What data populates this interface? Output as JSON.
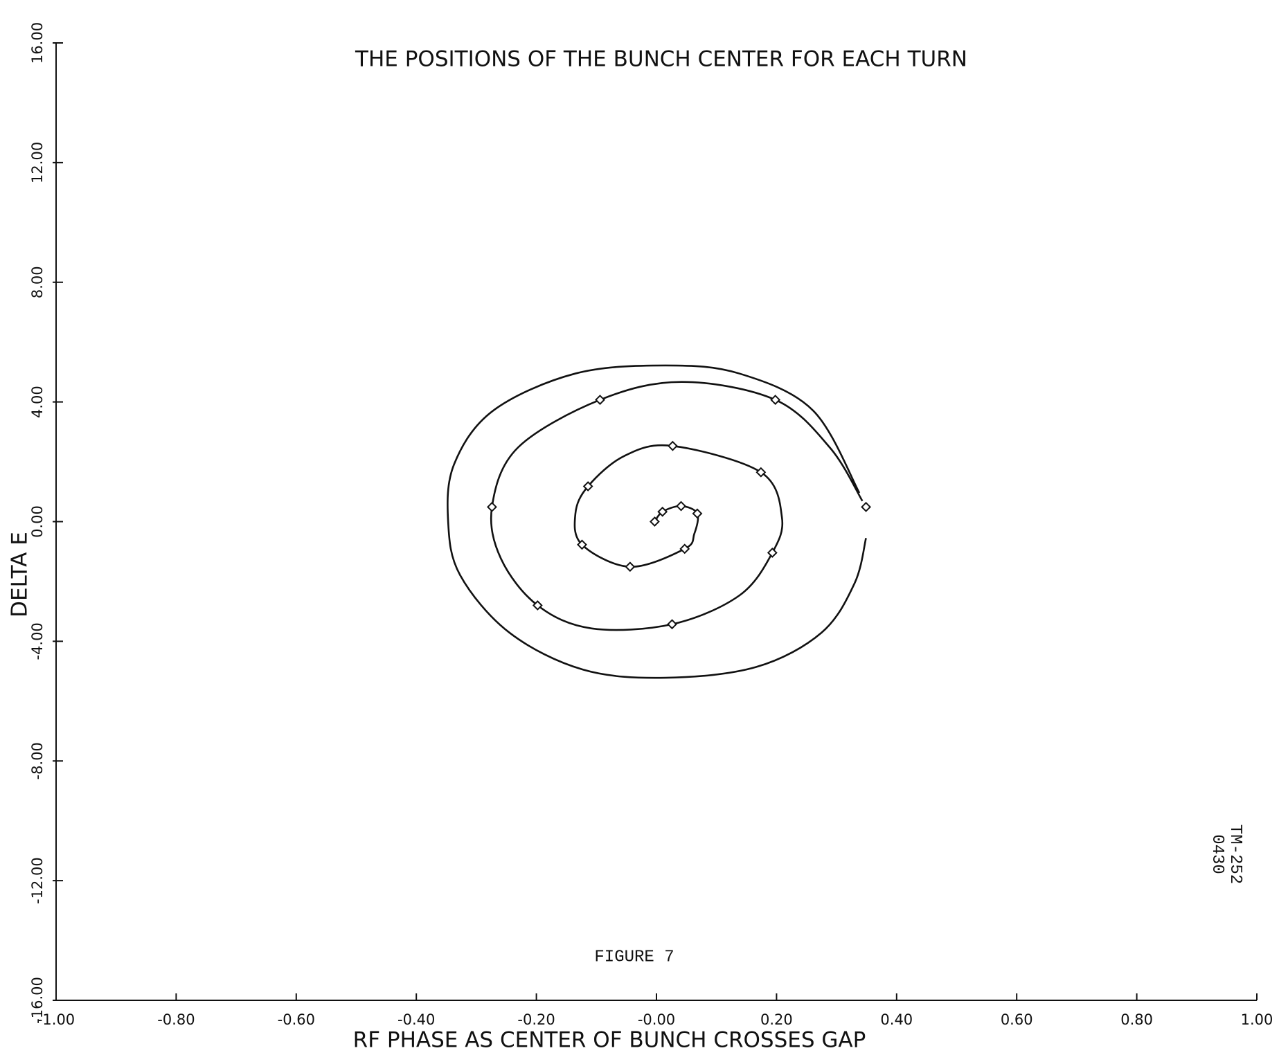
{
  "chart_data": {
    "type": "scatter",
    "title": "THE POSITIONS OF THE BUNCH CENTER FOR EACH TURN",
    "x_label": "RF PHASE AS CENTER OF BUNCH CROSSES GAP",
    "y_label": "DELTA E",
    "annotations": [
      "FIGURE 7",
      "TM-252\n0430"
    ],
    "xlim": [
      -1,
      1
    ],
    "ylim": [
      -16,
      16
    ],
    "xticks": [
      {
        "value": -1,
        "label": "-1.00"
      },
      {
        "value": -0.8,
        "label": "-0.80"
      },
      {
        "value": -0.6,
        "label": "-0.60"
      },
      {
        "value": -0.4,
        "label": "-0.40"
      },
      {
        "value": -0.2,
        "label": "-0.20"
      },
      {
        "value": 0,
        "label": "-0.00"
      },
      {
        "value": 0.2,
        "label": "0.20"
      },
      {
        "value": 0.4,
        "label": "0.40"
      },
      {
        "value": 0.6,
        "label": "0.60"
      },
      {
        "value": 0.8,
        "label": "0.80"
      },
      {
        "value": 1,
        "label": "1.00"
      }
    ],
    "yticks": [
      {
        "value": -16,
        "label": "-16.00"
      },
      {
        "value": -12,
        "label": "-12.00"
      },
      {
        "value": -8,
        "label": "-8.00"
      },
      {
        "value": -4,
        "label": "-4.00"
      },
      {
        "value": 0,
        "label": "0.00"
      },
      {
        "value": 4,
        "label": "4.00"
      },
      {
        "value": 8,
        "label": "8.00"
      },
      {
        "value": 12,
        "label": "12.00"
      },
      {
        "value": 16,
        "label": "16.00"
      }
    ],
    "grid": false,
    "series": [
      {
        "mode": "line",
        "color": "#111111",
        "x": [
          -0.003,
          0.01,
          0.041,
          0.068,
          0.063,
          0.047,
          -0.044,
          -0.124,
          -0.135,
          -0.114,
          -0.053,
          0.027,
          0.174,
          0.209,
          0.193,
          0.138,
          0.026,
          -0.108,
          -0.198,
          -0.259,
          -0.274,
          -0.231,
          -0.094,
          0.042,
          0.198,
          0.289,
          0.343,
          null,
          0.338,
          0.261,
          0.138,
          0.015,
          -0.135,
          -0.272,
          -0.337,
          -0.347,
          -0.327,
          -0.245,
          -0.122,
          0.015,
          0.166,
          0.275,
          0.33,
          0.349
        ],
        "y": [
          0,
          0.33,
          0.52,
          0.27,
          -0.41,
          -0.91,
          -1.51,
          -0.77,
          0.27,
          1.18,
          2.2,
          2.53,
          1.65,
          0.14,
          -1.04,
          -2.47,
          -3.43,
          -3.57,
          -2.8,
          -1.24,
          0.49,
          2.47,
          4.07,
          4.67,
          4.07,
          2.47,
          0.69,
          null,
          0.96,
          3.71,
          4.95,
          5.22,
          4.95,
          3.71,
          1.92,
          0,
          -1.79,
          -3.71,
          -4.95,
          -5.22,
          -4.86,
          -3.71,
          -2.06,
          -0.55
        ]
      },
      {
        "mode": "markers",
        "color": "#111111",
        "x": [
          -0.003,
          0.01,
          0.041,
          0.068,
          0.047,
          -0.044,
          -0.124,
          -0.114,
          0.027,
          0.174,
          0.193,
          0.026,
          -0.198,
          -0.274,
          -0.094,
          0.198,
          0.349
        ],
        "y": [
          0,
          0.33,
          0.52,
          0.27,
          -0.91,
          -1.51,
          -0.77,
          1.18,
          2.53,
          1.65,
          -1.04,
          -3.43,
          -2.8,
          0.49,
          4.07,
          4.07,
          0.49
        ]
      }
    ]
  }
}
